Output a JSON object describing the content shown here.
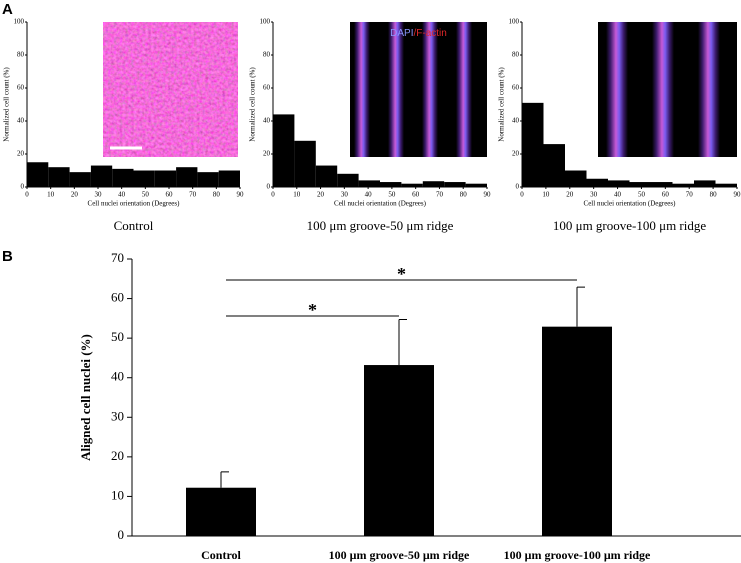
{
  "chart_data": [
    {
      "type": "histogram",
      "panel": "A",
      "caption": "Control",
      "xlabel": "Cell nuclei orientation (Degrees)",
      "ylabel": "Normalized cell count (%)",
      "bins": [
        0,
        9,
        18,
        27,
        36,
        45,
        54,
        63,
        72,
        81,
        90
      ],
      "values": [
        15,
        12,
        9,
        13,
        11,
        10,
        10,
        12,
        9,
        10
      ],
      "color": "#000000",
      "xlim": [
        0,
        90
      ],
      "xticks": [
        0,
        10,
        20,
        30,
        40,
        50,
        60,
        70,
        80,
        90
      ],
      "ylim": [
        0,
        100
      ],
      "yticks": [
        0,
        20,
        40,
        60,
        80,
        100
      ]
    },
    {
      "type": "histogram",
      "caption": "100 μm groove-50 μm ridge",
      "xlabel": "Cell nuclei orientation (Degrees)",
      "ylabel": "Normalized cell count (%)",
      "inset_label": [
        {
          "text": "DAPI",
          "color": "#8a96ff"
        },
        {
          "text": "/F-actin",
          "color": "#e0282a"
        }
      ],
      "bins": [
        0,
        9,
        18,
        27,
        36,
        45,
        54,
        63,
        72,
        81,
        90
      ],
      "values": [
        44,
        28,
        13,
        8,
        4,
        3,
        2,
        3.5,
        3,
        2
      ],
      "color": "#000000",
      "xlim": [
        0,
        90
      ],
      "xticks": [
        0,
        10,
        20,
        30,
        40,
        50,
        60,
        70,
        80,
        90
      ],
      "ylim": [
        0,
        100
      ],
      "yticks": [
        0,
        20,
        40,
        60,
        80,
        100
      ]
    },
    {
      "type": "histogram",
      "caption": "100 μm groove-100 μm ridge",
      "xlabel": "Cell nuclei orientation (Degrees)",
      "ylabel": "Normalized cell count (%)",
      "bins": [
        0,
        9,
        18,
        27,
        36,
        45,
        54,
        63,
        72,
        81,
        90
      ],
      "values": [
        51,
        26,
        10,
        5,
        4,
        3,
        3,
        2,
        4,
        2
      ],
      "color": "#000000",
      "xlim": [
        0,
        90
      ],
      "xticks": [
        0,
        10,
        20,
        30,
        40,
        50,
        60,
        70,
        80,
        90
      ],
      "ylim": [
        0,
        100
      ],
      "yticks": [
        0,
        20,
        40,
        60,
        80,
        100
      ]
    },
    {
      "type": "bar",
      "panel": "B",
      "ylabel": "Aligned cell nuclei (%)",
      "categories": [
        "Control",
        "100 μm groove-50 μm ridge",
        "100 μm groove-100 μm ridge"
      ],
      "values": [
        12.2,
        43.2,
        52.9
      ],
      "errors": [
        4,
        11.5,
        10
      ],
      "color": "#000000",
      "ylim": [
        0,
        70
      ],
      "yticks": [
        0,
        10,
        20,
        30,
        40,
        50,
        60,
        70
      ],
      "significance": [
        {
          "between": [
            0,
            1
          ],
          "label": "*"
        },
        {
          "between": [
            0,
            2
          ],
          "label": "*"
        }
      ]
    }
  ]
}
